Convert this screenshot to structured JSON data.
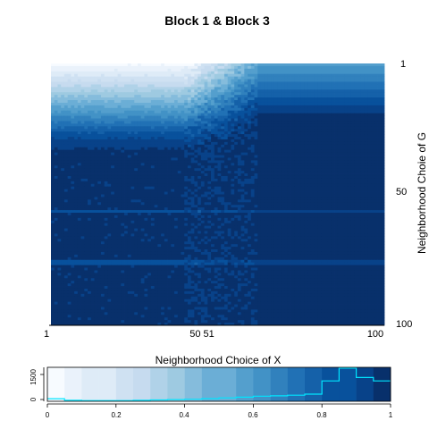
{
  "chart_data": [
    {
      "type": "heatmap",
      "title": "Block 1 & Block 3",
      "xlabel": "",
      "ylabel": "Neighborhood Choie of G",
      "x_ticks": [
        "1",
        "50 51",
        "100"
      ],
      "y_ticks": [
        "1",
        "50",
        "100"
      ],
      "xlim": [
        1,
        100
      ],
      "ylim": [
        1,
        100
      ],
      "columns": 100,
      "rows": 100,
      "row_base_values": [
        0.05,
        0.08,
        0.11,
        0.14,
        0.17,
        0.2,
        0.23,
        0.26,
        0.29,
        0.32,
        0.35,
        0.38,
        0.41,
        0.44,
        0.47,
        0.5,
        0.53,
        0.56,
        0.59,
        0.62,
        0.65,
        0.68,
        0.71,
        0.74,
        0.77,
        0.8,
        0.83,
        0.86,
        0.88,
        0.9,
        0.92,
        0.93,
        0.94,
        0.95,
        0.95,
        0.95,
        0.95,
        0.95,
        0.95,
        0.95,
        0.95,
        0.95,
        0.95,
        0.95,
        0.95,
        0.95,
        0.95,
        0.95,
        0.95,
        0.95,
        0.95,
        0.95,
        0.95,
        0.95,
        0.95,
        0.95,
        0.95,
        0.95,
        0.95,
        0.95,
        0.95,
        0.95,
        0.95,
        0.95,
        0.95,
        0.95,
        0.95,
        0.95,
        0.95,
        0.95,
        0.95,
        0.95,
        0.95,
        0.95,
        0.95,
        0.95,
        0.95,
        0.95,
        0.95,
        0.95,
        0.95,
        0.95,
        0.95,
        0.95,
        0.95,
        0.95,
        0.95,
        0.95,
        0.95,
        0.95,
        0.95,
        0.95,
        0.95,
        0.95,
        0.95,
        0.95,
        0.95,
        0.95,
        0.95,
        0.95
      ],
      "column_transition": {
        "start": 40,
        "end": 62,
        "right_value": 0.97
      },
      "colorscale": [
        "#f7fbff",
        "#eaf2fb",
        "#deebf7",
        "#cfe1f2",
        "#c6dbef",
        "#b0d2e8",
        "#9ecae1",
        "#85bcdc",
        "#6baed6",
        "#549fcd",
        "#4292c6",
        "#3181bd",
        "#2171b5",
        "#1561a9",
        "#08519c",
        "#084289",
        "#08306b"
      ]
    },
    {
      "type": "bar",
      "title": "Neighborhood Choice of X",
      "xlabel": "",
      "ylabel": "",
      "x_ticks": [
        "0",
        "0.2",
        "0.4",
        "0.6",
        "0.8",
        "1"
      ],
      "y_ticks": [
        "0",
        "1500"
      ],
      "xlim": [
        0,
        1
      ],
      "ylim": [
        0,
        2000
      ],
      "bins": 20,
      "histogram_line": [
        150,
        60,
        40,
        40,
        40,
        60,
        80,
        100,
        120,
        160,
        200,
        240,
        300,
        320,
        360,
        420,
        1200,
        1950,
        1400,
        1200
      ],
      "line_color": "#00e5ff"
    }
  ]
}
